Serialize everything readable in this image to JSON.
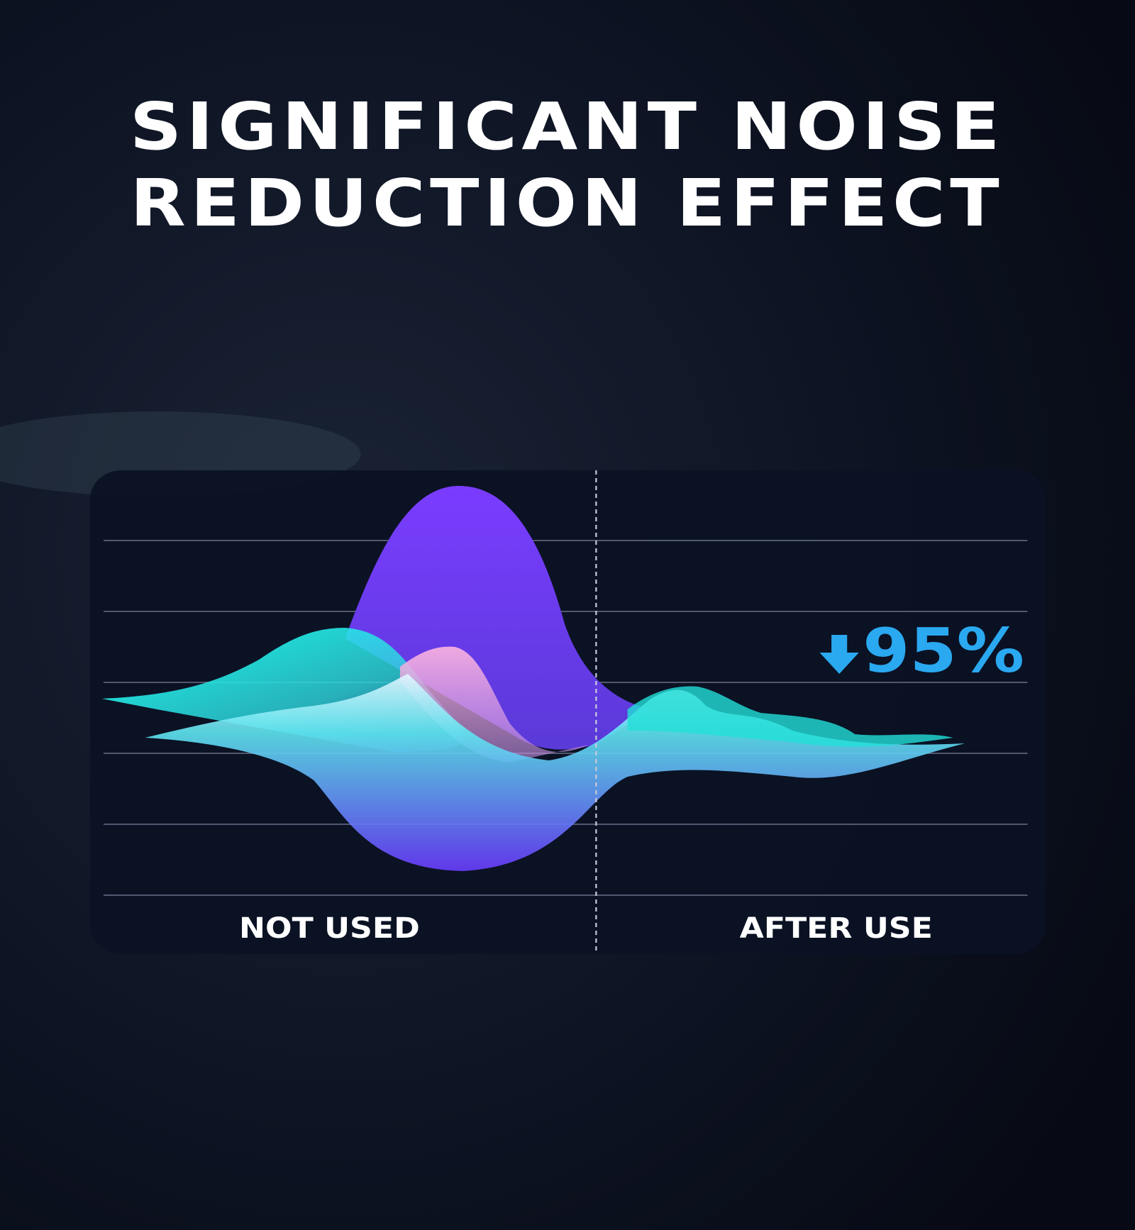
{
  "header": {
    "title_lines": [
      "SIGNIFICANT NOISE",
      "REDUCTION EFFECT"
    ]
  },
  "panel": {
    "reduction": "95%",
    "labels": [
      "NOT USED",
      "AFTER USE"
    ]
  }
}
